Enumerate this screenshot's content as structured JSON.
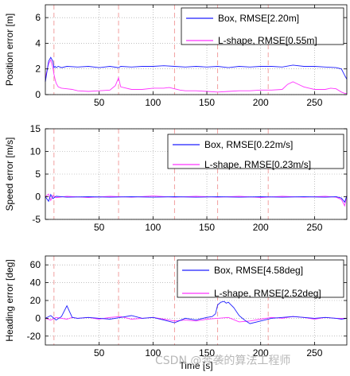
{
  "chart_data": [
    {
      "type": "line",
      "ylabel": "Position error [m]",
      "xlabel": "",
      "xlim": [
        0,
        280
      ],
      "ylim": [
        0,
        7
      ],
      "xticks": [
        50,
        100,
        150,
        200,
        250
      ],
      "yticks": [
        0,
        2,
        4,
        6
      ],
      "grid": true,
      "legend_position": "top-right",
      "vlines": [
        8,
        68,
        120,
        160,
        207
      ],
      "series": [
        {
          "name": "Box, RMSE[2.20m]",
          "color": "#1f1fff",
          "x": [
            0,
            3,
            5,
            7,
            8,
            9,
            10,
            12,
            15,
            20,
            30,
            40,
            50,
            60,
            68,
            70,
            80,
            90,
            100,
            110,
            120,
            130,
            140,
            150,
            160,
            170,
            180,
            190,
            200,
            210,
            220,
            230,
            240,
            250,
            260,
            270,
            275,
            278,
            280
          ],
          "y": [
            1.0,
            2.6,
            2.9,
            2.6,
            2.1,
            2.2,
            2.1,
            2.2,
            2.1,
            2.2,
            2.15,
            2.2,
            2.1,
            2.2,
            2.1,
            2.2,
            2.15,
            2.2,
            2.2,
            2.25,
            2.2,
            2.15,
            2.2,
            2.15,
            2.2,
            2.1,
            2.2,
            2.15,
            2.2,
            2.2,
            2.15,
            2.3,
            2.2,
            2.2,
            2.15,
            2.1,
            2.0,
            1.5,
            1.2
          ]
        },
        {
          "name": "L-shape, RMSE[0.55m]",
          "color": "#ff33ff",
          "x": [
            0,
            3,
            5,
            7,
            8,
            9,
            10,
            12,
            15,
            20,
            25,
            30,
            40,
            50,
            60,
            65,
            68,
            70,
            80,
            90,
            100,
            110,
            115,
            120,
            125,
            130,
            140,
            150,
            160,
            170,
            180,
            190,
            200,
            210,
            220,
            225,
            230,
            235,
            240,
            245,
            250,
            255,
            260,
            265,
            270,
            275,
            278,
            280
          ],
          "y": [
            1.3,
            2.4,
            2.7,
            2.1,
            1.6,
            1.2,
            0.9,
            0.6,
            0.5,
            0.45,
            0.4,
            0.3,
            0.25,
            0.3,
            0.35,
            0.7,
            1.3,
            0.6,
            0.4,
            0.4,
            0.5,
            0.5,
            0.55,
            0.45,
            0.35,
            0.3,
            0.3,
            0.25,
            0.2,
            0.25,
            0.3,
            0.3,
            0.35,
            0.35,
            0.4,
            0.8,
            1.0,
            0.8,
            0.6,
            0.5,
            0.4,
            0.4,
            0.4,
            0.5,
            0.45,
            0.2,
            0.1,
            0.1
          ]
        }
      ]
    },
    {
      "type": "line",
      "ylabel": "Speed error [m/s]",
      "xlabel": "",
      "xlim": [
        0,
        280
      ],
      "ylim": [
        -5,
        15
      ],
      "xticks": [
        50,
        100,
        150,
        200,
        250
      ],
      "yticks": [
        -5,
        0,
        5,
        10,
        15
      ],
      "grid": true,
      "legend_position": "top-right",
      "vlines": [
        8,
        68,
        120,
        160,
        207
      ],
      "series": [
        {
          "name": "Box, RMSE[0.22m/s]",
          "color": "#1f1fff",
          "x": [
            0,
            3,
            5,
            7,
            10,
            20,
            40,
            60,
            80,
            100,
            120,
            140,
            160,
            180,
            200,
            220,
            240,
            260,
            270,
            275,
            278,
            280
          ],
          "y": [
            0,
            -1.0,
            0.5,
            -0.4,
            0.1,
            -0.1,
            0.0,
            -0.1,
            0.0,
            -0.1,
            0.0,
            -0.1,
            0.0,
            -0.1,
            0.0,
            -0.1,
            0.0,
            -0.1,
            0.0,
            -0.3,
            -1.2,
            0.2
          ]
        },
        {
          "name": "L-shape, RMSE[0.23m/s]",
          "color": "#ff33ff",
          "x": [
            0,
            3,
            5,
            7,
            10,
            20,
            40,
            60,
            80,
            100,
            120,
            140,
            160,
            180,
            200,
            220,
            240,
            260,
            270,
            275,
            278,
            280
          ],
          "y": [
            0,
            0.6,
            -0.8,
            0.3,
            -0.2,
            0.1,
            -0.15,
            0.1,
            -0.1,
            0.15,
            -0.1,
            0.1,
            -0.1,
            0.1,
            -0.15,
            0.1,
            -0.1,
            0.1,
            -0.1,
            -0.6,
            -2.0,
            0.3
          ]
        }
      ]
    },
    {
      "type": "line",
      "ylabel": "Heading error [deg]",
      "xlabel": "Time [s]",
      "xlim": [
        0,
        280
      ],
      "ylim": [
        -30,
        70
      ],
      "xticks": [
        50,
        100,
        150,
        200,
        250
      ],
      "yticks": [
        -20,
        0,
        20,
        40,
        60
      ],
      "grid": true,
      "legend_position": "top-right",
      "vlines": [
        8,
        68,
        120,
        160,
        207
      ],
      "series": [
        {
          "name": "Box, RMSE[4.58deg]",
          "color": "#1f1fff",
          "x": [
            0,
            5,
            10,
            15,
            20,
            25,
            30,
            40,
            50,
            60,
            70,
            80,
            90,
            100,
            110,
            120,
            130,
            140,
            150,
            155,
            158,
            160,
            163,
            166,
            168,
            170,
            175,
            180,
            185,
            190,
            200,
            210,
            220,
            230,
            240,
            250,
            260,
            270,
            275,
            280
          ],
          "y": [
            0,
            3,
            -2,
            2,
            14,
            1,
            0,
            1,
            0,
            -1,
            1,
            3,
            0,
            1,
            -2,
            -5,
            0,
            -2,
            1,
            2,
            5,
            15,
            18,
            19,
            17,
            18,
            12,
            3,
            -2,
            -6,
            -3,
            0,
            1,
            2,
            1,
            0,
            1,
            0,
            -1,
            0
          ]
        },
        {
          "name": "L-shape, RMSE[2.52deg]",
          "color": "#ff33ff",
          "x": [
            0,
            5,
            10,
            15,
            20,
            25,
            30,
            40,
            50,
            60,
            70,
            80,
            90,
            100,
            110,
            120,
            130,
            140,
            150,
            160,
            170,
            180,
            190,
            200,
            210,
            220,
            230,
            240,
            250,
            260,
            270,
            280
          ],
          "y": [
            0,
            -2,
            1,
            0,
            -1,
            1,
            0,
            1,
            -1,
            1,
            2,
            -1,
            0,
            1,
            -1,
            -3,
            -2,
            -3,
            -1,
            0,
            1,
            -4,
            -3,
            -1,
            1,
            0,
            2,
            1,
            -1,
            1,
            0,
            0
          ]
        }
      ]
    }
  ],
  "watermark": "CSDN @奔袭的算法工程师"
}
